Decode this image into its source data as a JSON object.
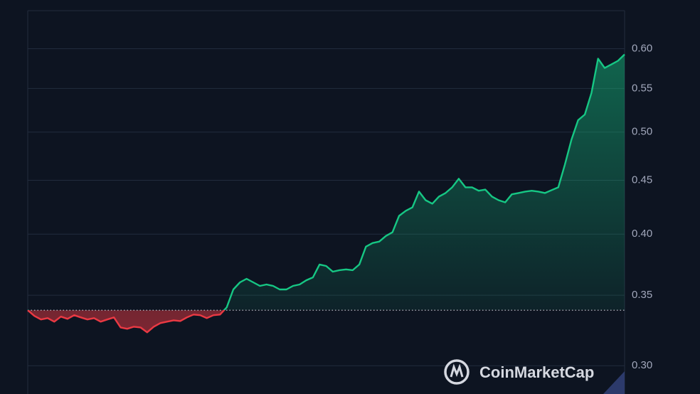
{
  "chart_data": {
    "type": "line",
    "values": [
      0.3387,
      0.3345,
      0.3319,
      0.3329,
      0.3303,
      0.334,
      0.3324,
      0.335,
      0.3334,
      0.3319,
      0.3329,
      0.3303,
      0.3319,
      0.3334,
      0.3262,
      0.3252,
      0.3267,
      0.3262,
      0.3227,
      0.3267,
      0.3293,
      0.3303,
      0.3313,
      0.3308,
      0.3334,
      0.3355,
      0.335,
      0.3329,
      0.335,
      0.3355,
      0.3408,
      0.3544,
      0.36,
      0.3628,
      0.36,
      0.3572,
      0.3583,
      0.3572,
      0.3544,
      0.3544,
      0.3572,
      0.3583,
      0.3616,
      0.3639,
      0.3743,
      0.3731,
      0.3685,
      0.3697,
      0.3703,
      0.3697,
      0.3743,
      0.3892,
      0.3923,
      0.3935,
      0.3984,
      0.4016,
      0.4163,
      0.4209,
      0.4241,
      0.439,
      0.4308,
      0.4275,
      0.4342,
      0.4376,
      0.4431,
      0.4515,
      0.4431,
      0.4431,
      0.4398,
      0.4409,
      0.4342,
      0.4308,
      0.4288,
      0.4364,
      0.4376,
      0.439,
      0.4398,
      0.439,
      0.4376,
      0.4404,
      0.4431,
      0.4658,
      0.492,
      0.5132,
      0.5196,
      0.5446,
      0.587,
      0.5752,
      0.5797,
      0.5843,
      0.5925
    ],
    "baseline": 0.3387,
    "up_color": "#16c784",
    "down_color": "#ea3943",
    "ylim": [
      0.282,
      0.652
    ],
    "log_y": true,
    "grid": true,
    "yticks": [
      {
        "value": 0.3,
        "label": "0.30"
      },
      0.35,
      {
        "value": 0.4,
        "label": "0.40"
      },
      0.45,
      {
        "value": 0.5,
        "label": "0.50"
      },
      0.55,
      {
        "value": 0.6,
        "label": "0.60"
      }
    ],
    "watermark": "CoinMarketCap"
  }
}
